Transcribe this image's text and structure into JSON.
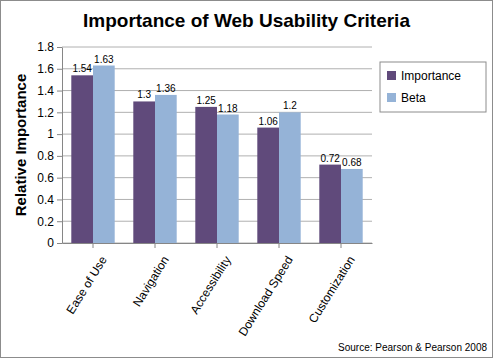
{
  "chart_data": {
    "type": "bar",
    "title": "Importance of Web Usability Criteria",
    "y_label": "Relative Importance",
    "categories": [
      "Ease of Use",
      "Navigation",
      "Accessibility",
      "Download Speed",
      "Customization"
    ],
    "series": [
      {
        "name": "Importance",
        "color": "#604a7b",
        "values": [
          1.54,
          1.3,
          1.25,
          1.06,
          0.72
        ]
      },
      {
        "name": "Beta",
        "color": "#95b3d7",
        "values": [
          1.63,
          1.36,
          1.18,
          1.2,
          0.68
        ]
      }
    ],
    "ylim": [
      0,
      1.8
    ],
    "yticks": [
      0,
      0.2,
      0.4,
      0.6,
      0.8,
      1,
      1.2,
      1.4,
      1.6,
      1.8
    ],
    "grid": true,
    "legend": "right",
    "data_labels": true,
    "annotations": [
      "Source: Pearson & Pearson 2008"
    ]
  }
}
